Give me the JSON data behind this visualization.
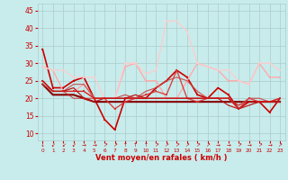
{
  "xlabel": "Vent moyen/en rafales ( km/h )",
  "xlabel_color": "#cc0000",
  "background_color": "#c8ecec",
  "grid_color": "#aacccc",
  "text_color": "#cc0000",
  "xlim": [
    -0.5,
    23.5
  ],
  "ylim": [
    8,
    47
  ],
  "yticks": [
    10,
    15,
    20,
    25,
    30,
    35,
    40,
    45
  ],
  "xticks": [
    0,
    1,
    2,
    3,
    4,
    5,
    6,
    7,
    8,
    9,
    10,
    11,
    12,
    13,
    14,
    15,
    16,
    17,
    18,
    19,
    20,
    21,
    22,
    23
  ],
  "series": [
    {
      "y": [
        34,
        23,
        23,
        25,
        26,
        20,
        14,
        11,
        20,
        20,
        20,
        23,
        25,
        28,
        26,
        21,
        20,
        23,
        21,
        17,
        19,
        19,
        16,
        20
      ],
      "color": "#cc0000",
      "lw": 1.2,
      "marker": "s",
      "ms": 2.0,
      "alpha": 1.0
    },
    {
      "y": [
        24,
        21,
        21,
        21,
        20,
        19,
        19,
        19,
        19,
        19,
        19,
        19,
        19,
        19,
        19,
        19,
        19,
        19,
        19,
        19,
        19,
        19,
        19,
        19
      ],
      "color": "#880000",
      "lw": 1.5,
      "marker": null,
      "ms": 0,
      "alpha": 1.0
    },
    {
      "y": [
        29,
        28,
        22,
        22,
        24,
        20,
        20,
        20,
        29,
        30,
        25,
        25,
        20,
        20,
        25,
        30,
        29,
        28,
        25,
        25,
        24,
        30,
        26,
        26
      ],
      "color": "#ffaaaa",
      "lw": 1.0,
      "marker": "s",
      "ms": 2.0,
      "alpha": 1.0
    },
    {
      "y": [
        29,
        28,
        28,
        26,
        26,
        26,
        20,
        20,
        30,
        30,
        27,
        28,
        42,
        42,
        39,
        30,
        29,
        28,
        28,
        25,
        24,
        30,
        30,
        28
      ],
      "color": "#ffcccc",
      "lw": 1.0,
      "marker": "s",
      "ms": 2.0,
      "alpha": 0.9
    },
    {
      "y": [
        25,
        22,
        22,
        22,
        22,
        20,
        20,
        17,
        19,
        20,
        21,
        22,
        21,
        28,
        20,
        19,
        20,
        20,
        20,
        17,
        20,
        19,
        19,
        20
      ],
      "color": "#dd3333",
      "lw": 1.0,
      "marker": "s",
      "ms": 2.0,
      "alpha": 0.9
    },
    {
      "y": [
        24,
        22,
        22,
        24,
        24,
        20,
        20,
        20,
        20,
        20,
        22,
        23,
        25,
        26,
        25,
        22,
        20,
        20,
        20,
        18,
        20,
        20,
        19,
        20
      ],
      "color": "#cc4444",
      "lw": 0.9,
      "marker": null,
      "ms": 0,
      "alpha": 0.85
    },
    {
      "y": [
        25,
        22,
        22,
        23,
        20,
        19,
        20,
        20,
        20,
        21,
        20,
        20,
        20,
        20,
        20,
        20,
        20,
        20,
        18,
        17,
        18,
        19,
        19,
        19
      ],
      "color": "#bb1111",
      "lw": 0.9,
      "marker": null,
      "ms": 0,
      "alpha": 0.95
    },
    {
      "y": [
        25,
        22,
        22,
        20,
        20,
        20,
        20,
        20,
        21,
        20,
        20,
        20,
        20,
        20,
        20,
        20,
        20,
        20,
        20,
        17,
        19,
        19,
        19,
        19
      ],
      "color": "#cc2222",
      "lw": 0.8,
      "marker": null,
      "ms": 0,
      "alpha": 0.8
    },
    {
      "y": [
        25,
        22,
        22,
        22,
        22,
        20,
        20,
        20,
        20,
        20,
        20,
        20,
        20,
        20,
        20,
        20,
        20,
        20,
        20,
        18,
        19,
        19,
        19,
        20
      ],
      "color": "#cc0000",
      "lw": 0.7,
      "marker": null,
      "ms": 0,
      "alpha": 0.5
    }
  ],
  "arrows": [
    "↓",
    "↙",
    "↙",
    "↙",
    "→",
    "→",
    "↗",
    "↗",
    "↑",
    "↑",
    "↑",
    "↗",
    "↗",
    "↗",
    "↗",
    "↗",
    "↗",
    "→",
    "→",
    "↗",
    "→",
    "↗",
    "→",
    "↗"
  ]
}
